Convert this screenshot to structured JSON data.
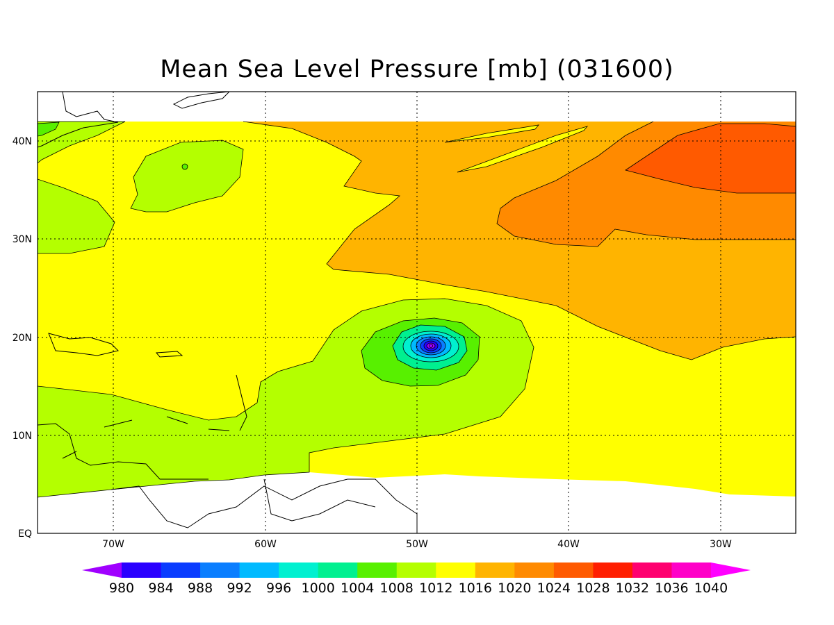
{
  "title": "Mean Sea Level Pressure [mb] (031600)",
  "map": {
    "lat_ticks": [
      "40N",
      "30N",
      "20N",
      "10N",
      "EQ"
    ],
    "lon_ticks": [
      "70W",
      "60W",
      "50W",
      "40W",
      "30W"
    ],
    "lon_range": [
      -75,
      -25
    ],
    "lat_range": [
      0,
      45
    ],
    "grid": "dotted",
    "storm_center": {
      "lon": -49,
      "lat": 19
    }
  },
  "colorbar": {
    "labels": [
      "980",
      "984",
      "988",
      "992",
      "996",
      "1000",
      "1004",
      "1008",
      "1012",
      "1016",
      "1020",
      "1024",
      "1028",
      "1032",
      "1036",
      "1040"
    ],
    "colors": [
      "#a000ff",
      "#2a00ff",
      "#0a3cff",
      "#0a7eff",
      "#00baff",
      "#00f0d0",
      "#00f090",
      "#58f000",
      "#b4ff00",
      "#ffff00",
      "#ffb400",
      "#ff8a00",
      "#ff5a00",
      "#ff1e00",
      "#ff0070",
      "#ff00c8",
      "#ff00ff"
    ]
  }
}
